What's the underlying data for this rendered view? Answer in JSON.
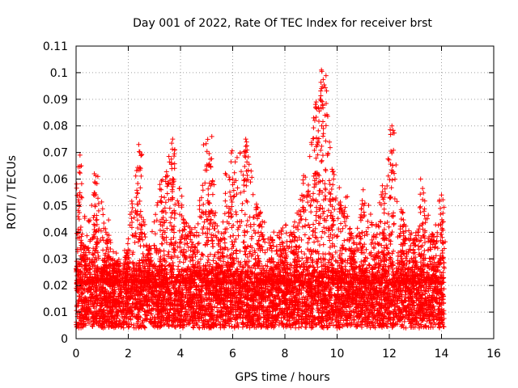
{
  "chart_data": {
    "type": "scatter",
    "title": "Day 001 of 2022, Rate Of TEC Index for receiver brst",
    "xlabel": "GPS time / hours",
    "ylabel": "ROTI / TECUs",
    "xlim": [
      0,
      16
    ],
    "ylim": [
      0,
      0.11
    ],
    "xticks": [
      "0",
      "2",
      "4",
      "6",
      "8",
      "10",
      "12",
      "14",
      "16"
    ],
    "yticks": [
      "0",
      "0.01",
      "0.02",
      "0.03",
      "0.04",
      "0.05",
      "0.06",
      "0.07",
      "0.08",
      "0.09",
      "0.1",
      "0.11"
    ],
    "grid": true,
    "legend": "none",
    "marker": "plus",
    "color": "#ff0000",
    "x_data_range": [
      0,
      14.1
    ],
    "typical_band": [
      0.005,
      0.025
    ],
    "notable_points": [
      {
        "x": 9.4,
        "y": 0.101
      },
      {
        "x": 9.4,
        "y": 0.094
      },
      {
        "x": 9.2,
        "y": 0.089
      },
      {
        "x": 9.1,
        "y": 0.083
      },
      {
        "x": 12.1,
        "y": 0.08
      },
      {
        "x": 5.2,
        "y": 0.076
      },
      {
        "x": 3.7,
        "y": 0.075
      },
      {
        "x": 6.5,
        "y": 0.075
      },
      {
        "x": 2.4,
        "y": 0.073
      },
      {
        "x": 0.15,
        "y": 0.069
      },
      {
        "x": 0.2,
        "y": 0.065
      },
      {
        "x": 0.7,
        "y": 0.062
      },
      {
        "x": 13.2,
        "y": 0.06
      },
      {
        "x": 11.0,
        "y": 0.056
      },
      {
        "x": 14.0,
        "y": 0.054
      }
    ],
    "envelope_peaks": [
      {
        "x": 0.0,
        "h": 0.03
      },
      {
        "x": 0.15,
        "h": 0.068
      },
      {
        "x": 0.4,
        "h": 0.04
      },
      {
        "x": 0.75,
        "h": 0.062
      },
      {
        "x": 1.1,
        "h": 0.046
      },
      {
        "x": 1.5,
        "h": 0.03
      },
      {
        "x": 1.9,
        "h": 0.034
      },
      {
        "x": 2.4,
        "h": 0.072
      },
      {
        "x": 2.8,
        "h": 0.035
      },
      {
        "x": 3.3,
        "h": 0.06
      },
      {
        "x": 3.7,
        "h": 0.075
      },
      {
        "x": 4.2,
        "h": 0.045
      },
      {
        "x": 4.5,
        "h": 0.04
      },
      {
        "x": 5.1,
        "h": 0.075
      },
      {
        "x": 5.5,
        "h": 0.038
      },
      {
        "x": 5.9,
        "h": 0.07
      },
      {
        "x": 6.5,
        "h": 0.075
      },
      {
        "x": 7.0,
        "h": 0.048
      },
      {
        "x": 7.5,
        "h": 0.04
      },
      {
        "x": 7.9,
        "h": 0.042
      },
      {
        "x": 8.4,
        "h": 0.045
      },
      {
        "x": 8.8,
        "h": 0.062
      },
      {
        "x": 9.2,
        "h": 0.09
      },
      {
        "x": 9.45,
        "h": 0.101
      },
      {
        "x": 9.8,
        "h": 0.065
      },
      {
        "x": 10.2,
        "h": 0.055
      },
      {
        "x": 10.6,
        "h": 0.04
      },
      {
        "x": 11.0,
        "h": 0.056
      },
      {
        "x": 11.5,
        "h": 0.045
      },
      {
        "x": 11.8,
        "h": 0.06
      },
      {
        "x": 12.1,
        "h": 0.08
      },
      {
        "x": 12.5,
        "h": 0.05
      },
      {
        "x": 13.0,
        "h": 0.04
      },
      {
        "x": 13.3,
        "h": 0.058
      },
      {
        "x": 13.7,
        "h": 0.04
      },
      {
        "x": 14.0,
        "h": 0.053
      }
    ]
  }
}
